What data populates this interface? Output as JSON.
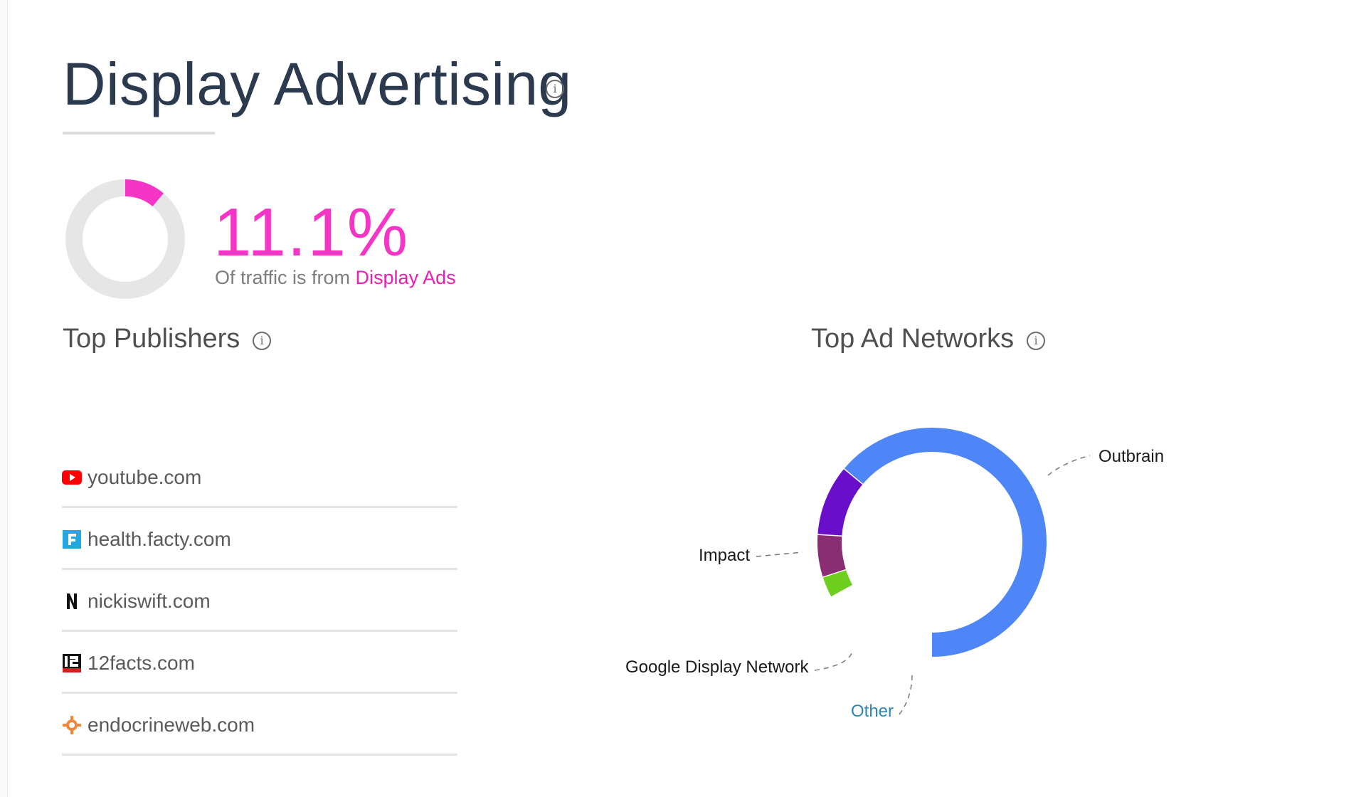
{
  "header": {
    "title": "Display Advertising",
    "info_glyph": "i"
  },
  "traffic": {
    "percent_label": "11.1%",
    "share_fraction": 0.111,
    "caption_prefix": "Of traffic is from",
    "caption_accent": "Display Ads",
    "accent_color": "#f535c6",
    "track_color": "#e6e6e6"
  },
  "publishers": {
    "title": "Top Publishers",
    "items": [
      {
        "name": "youtube.com",
        "icon": "youtube-icon"
      },
      {
        "name": "health.facty.com",
        "icon": "facty-icon"
      },
      {
        "name": "nickiswift.com",
        "icon": "nickiswift-icon"
      },
      {
        "name": "12facts.com",
        "icon": "12facts-icon"
      },
      {
        "name": "endocrineweb.com",
        "icon": "endocrineweb-icon"
      }
    ]
  },
  "ad_networks": {
    "title": "Top Ad Networks",
    "labels": {
      "outbrain": "Outbrain",
      "impact": "Impact",
      "google": "Google Display Network",
      "other": "Other"
    }
  },
  "chart_data": {
    "type": "pie",
    "title": "Top Ad Networks",
    "slices": [
      {
        "label": "Outbrain",
        "value": 64,
        "color": "#4f86f7"
      },
      {
        "label": "Google Display Network",
        "value": 10,
        "color": "#6a0fc9"
      },
      {
        "label": "Impact",
        "value": 6,
        "color": "#8b2d73"
      },
      {
        "label": "Other",
        "value": 3,
        "color": "#6fcf1e"
      }
    ]
  }
}
